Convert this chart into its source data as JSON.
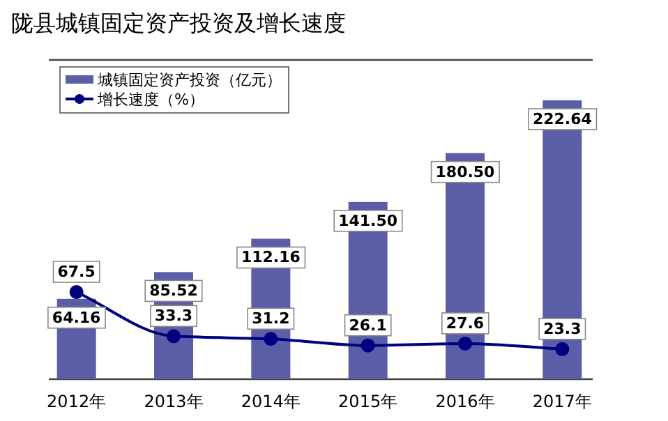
{
  "chart_data": {
    "type": "bar",
    "title": "陇县城镇固定资产投资及增长速度",
    "categories": [
      "2012年",
      "2013年",
      "2014年",
      "2015年",
      "2016年",
      "2017年"
    ],
    "series": [
      {
        "name": "城镇固定资产投资（亿元）",
        "color": "#5b5ea6",
        "values": [
          64.16,
          85.52,
          112.16,
          141.5,
          180.5,
          222.64
        ],
        "value_labels": [
          "64.16",
          "85.52",
          "112.16",
          "141.50",
          "180.50",
          "222.64"
        ]
      },
      {
        "name": "增长速度（%）",
        "type": "line",
        "axis": "y2",
        "color": "#000080",
        "marker": "circle",
        "values": [
          67.5,
          33.3,
          31.2,
          26.1,
          27.6,
          23.3
        ],
        "value_labels": [
          "67.5",
          "33.3",
          "31.2",
          "26.1",
          "27.6",
          "23.3"
        ]
      }
    ],
    "legend": "top left",
    "tick_labels": "x"
  }
}
